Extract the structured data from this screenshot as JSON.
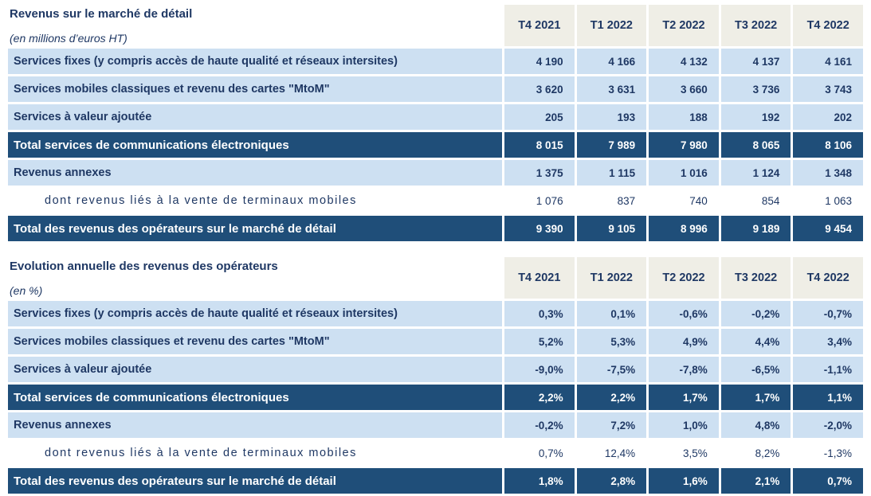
{
  "colors": {
    "navy_text": "#1f3864",
    "total_row_bg": "#1f4e79",
    "light_row_bg": "#cde0f2",
    "header_bg": "#efeee6",
    "sub_row_bg": "#ffffff"
  },
  "chart_data": [
    {
      "type": "table",
      "title": "Revenus sur le marché de détail",
      "subtitle": "(en millions d’euros HT)",
      "columns": [
        "T4 2021",
        "T1 2022",
        "T2 2022",
        "T3 2022",
        "T4 2022"
      ],
      "rows": [
        {
          "label": "Services fixes (y compris accès de haute qualité et réseaux intersites)",
          "style": "light",
          "values": [
            "4 190",
            "4 166",
            "4 132",
            "4 137",
            "4 161"
          ]
        },
        {
          "label": "Services mobiles classiques et revenu des cartes \"MtoM\"",
          "style": "light",
          "values": [
            "3 620",
            "3 631",
            "3 660",
            "3 736",
            "3 743"
          ]
        },
        {
          "label": "Services à valeur ajoutée",
          "style": "light",
          "values": [
            "205",
            "193",
            "188",
            "192",
            "202"
          ]
        },
        {
          "label": "Total services de communications électroniques",
          "style": "total",
          "values": [
            "8 015",
            "7 989",
            "7 980",
            "8 065",
            "8 106"
          ]
        },
        {
          "label": "Revenus annexes",
          "style": "light",
          "values": [
            "1 375",
            "1 115",
            "1 016",
            "1 124",
            "1 348"
          ]
        },
        {
          "label": "dont revenus liés à la vente de terminaux mobiles",
          "style": "sub",
          "values": [
            "1 076",
            "837",
            "740",
            "854",
            "1 063"
          ]
        },
        {
          "label": "Total des revenus des opérateurs sur le marché de détail",
          "style": "total",
          "values": [
            "9 390",
            "9 105",
            "8 996",
            "9 189",
            "9 454"
          ]
        }
      ]
    },
    {
      "type": "table",
      "title": "Evolution annuelle des revenus des opérateurs",
      "subtitle": "(en %)",
      "columns": [
        "T4 2021",
        "T1 2022",
        "T2 2022",
        "T3 2022",
        "T4 2022"
      ],
      "rows": [
        {
          "label": "Services fixes (y compris accès de haute qualité et réseaux intersites)",
          "style": "light",
          "values": [
            "0,3%",
            "0,1%",
            "-0,6%",
            "-0,2%",
            "-0,7%"
          ]
        },
        {
          "label": "Services mobiles classiques et revenu des cartes \"MtoM\"",
          "style": "light",
          "values": [
            "5,2%",
            "5,3%",
            "4,9%",
            "4,4%",
            "3,4%"
          ]
        },
        {
          "label": "Services à valeur ajoutée",
          "style": "light",
          "values": [
            "-9,0%",
            "-7,5%",
            "-7,8%",
            "-6,5%",
            "-1,1%"
          ]
        },
        {
          "label": "Total services de communications électroniques",
          "style": "total",
          "values": [
            "2,2%",
            "2,2%",
            "1,7%",
            "1,7%",
            "1,1%"
          ]
        },
        {
          "label": "Revenus annexes",
          "style": "light",
          "values": [
            "-0,2%",
            "7,2%",
            "1,0%",
            "4,8%",
            "-2,0%"
          ]
        },
        {
          "label": "dont revenus liés à la vente de terminaux mobiles",
          "style": "sub",
          "values": [
            "0,7%",
            "12,4%",
            "3,5%",
            "8,2%",
            "-1,3%"
          ]
        },
        {
          "label": "Total des revenus des opérateurs sur le marché de détail",
          "style": "total",
          "values": [
            "1,8%",
            "2,8%",
            "1,6%",
            "2,1%",
            "0,7%"
          ]
        }
      ]
    }
  ]
}
